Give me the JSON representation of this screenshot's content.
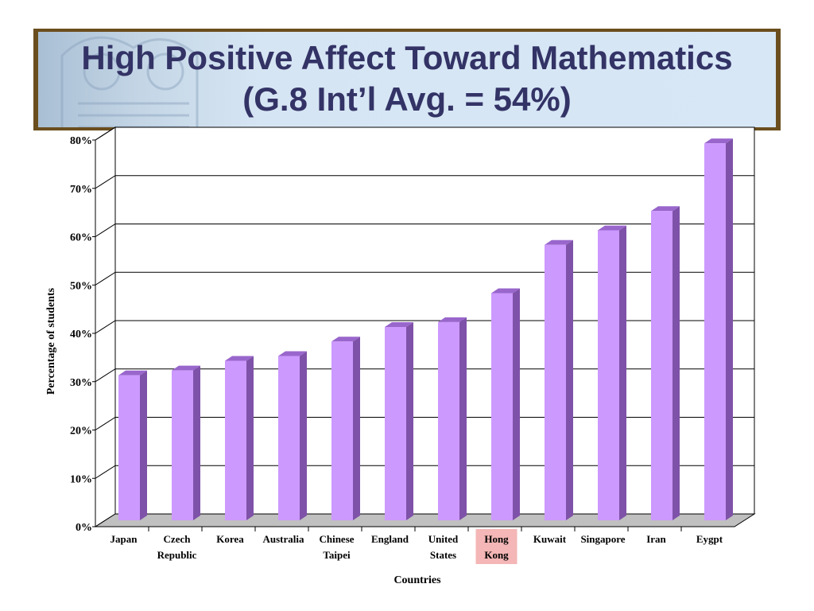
{
  "title_line1": "High Positive Affect Toward Mathematics",
  "title_line2": "(G.8 Int’l Avg. = 54%)",
  "chart_data": {
    "type": "bar",
    "categories": [
      [
        "Japan"
      ],
      [
        "Czech",
        "Republic"
      ],
      [
        "Korea"
      ],
      [
        "Australia"
      ],
      [
        "Chinese",
        "Taipei"
      ],
      [
        "England"
      ],
      [
        "United",
        "States"
      ],
      [
        "Hong",
        "Kong"
      ],
      [
        "Kuwait"
      ],
      [
        "Singapore"
      ],
      [
        "Iran"
      ],
      [
        "Eygpt"
      ]
    ],
    "values": [
      30,
      31,
      33,
      34,
      37,
      40,
      41,
      47,
      57,
      60,
      64,
      78
    ],
    "highlight_index": 7,
    "xlabel": "Countries",
    "ylabel": "Percentage of students",
    "ylim": [
      0,
      80
    ],
    "yticks": [
      "0%",
      "10%",
      "20%",
      "30%",
      "40%",
      "50%",
      "60%",
      "70%",
      "80%"
    ],
    "grid": true,
    "colors": {
      "bar_front": "#cc99ff",
      "bar_side": "#7f52a9",
      "bar_top": "#9966cc",
      "floor": "#c0c0c0",
      "highlight_bg": "#f4b6b6",
      "title": "#333366",
      "banner_border": "#6b4e1e"
    }
  }
}
